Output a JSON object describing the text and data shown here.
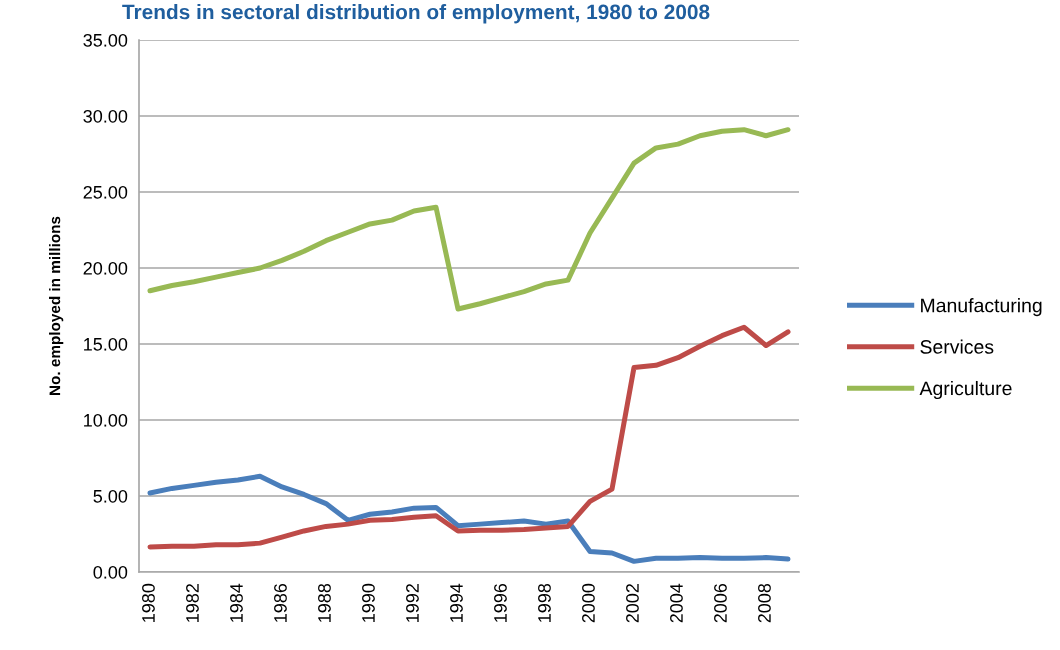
{
  "chart_data": {
    "type": "line",
    "title": "Trends in sectoral distribution of employment, 1980 to 2008",
    "ylabel": "No. employed in millions",
    "categories": [
      "1980",
      null,
      "1982",
      null,
      "1984",
      null,
      "1986",
      null,
      "1988",
      null,
      "1990",
      null,
      "1992",
      null,
      "1994",
      null,
      "1996",
      null,
      "1998",
      null,
      "2000",
      null,
      "2002",
      null,
      "2004",
      null,
      "2006",
      null,
      "2008",
      null
    ],
    "series": [
      {
        "name": "Manufacturing",
        "color": "#4a7ebb",
        "values": [
          5.2,
          5.5,
          5.7,
          5.9,
          6.05,
          6.3,
          5.6,
          5.1,
          4.5,
          3.4,
          3.8,
          3.95,
          4.2,
          4.25,
          3.05,
          3.15,
          3.25,
          3.35,
          3.15,
          3.35,
          1.35,
          1.25,
          0.7,
          0.9,
          0.9,
          0.95,
          0.9,
          0.9,
          0.95,
          0.85
        ]
      },
      {
        "name": "Services",
        "color": "#be4b48",
        "values": [
          1.65,
          1.7,
          1.7,
          1.8,
          1.8,
          1.9,
          2.3,
          2.7,
          3.0,
          3.15,
          3.4,
          3.45,
          3.6,
          3.7,
          2.7,
          2.75,
          2.75,
          2.8,
          2.9,
          3.0,
          4.65,
          5.45,
          13.45,
          13.6,
          14.1,
          14.85,
          15.55,
          16.1,
          14.9,
          15.8
        ]
      },
      {
        "name": "Agriculture",
        "color": "#98b954",
        "values": [
          18.5,
          18.85,
          19.1,
          19.4,
          19.7,
          20.0,
          20.5,
          21.1,
          21.8,
          22.35,
          22.9,
          23.15,
          23.75,
          24.0,
          17.3,
          17.65,
          18.05,
          18.45,
          18.95,
          19.2,
          22.3,
          24.6,
          26.9,
          27.9,
          28.15,
          28.7,
          29.0,
          29.1,
          28.7,
          29.1
        ]
      }
    ],
    "ylim": [
      0,
      35
    ],
    "yticks": [
      {
        "value": 0,
        "label": "0.00"
      },
      {
        "value": 5,
        "label": "5.00"
      },
      {
        "value": 10,
        "label": "10.00"
      },
      {
        "value": 15,
        "label": "15.00"
      },
      {
        "value": 20,
        "label": "20.00"
      },
      {
        "value": 25,
        "label": "25.00"
      },
      {
        "value": 30,
        "label": "30.00"
      },
      {
        "value": 35,
        "label": "35.00"
      }
    ],
    "grid": "y",
    "legend": "right",
    "marker": "none",
    "line_style": "solid"
  }
}
